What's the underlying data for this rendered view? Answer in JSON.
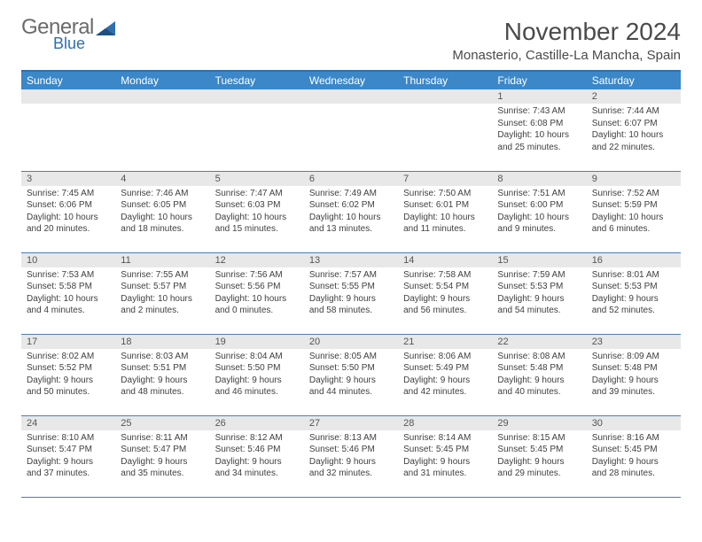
{
  "brand": {
    "general": "General",
    "blue": "Blue"
  },
  "title": "November 2024",
  "location": "Monasterio, Castille-La Mancha, Spain",
  "colors": {
    "header_bg": "#3b87c8",
    "header_border": "#2f6fb0",
    "row_border": "#4a7fb5",
    "daynum_bg": "#e8e8e8",
    "text": "#404040"
  },
  "weekdays": [
    "Sunday",
    "Monday",
    "Tuesday",
    "Wednesday",
    "Thursday",
    "Friday",
    "Saturday"
  ],
  "weeks": [
    [
      {
        "empty": true
      },
      {
        "empty": true
      },
      {
        "empty": true
      },
      {
        "empty": true
      },
      {
        "empty": true
      },
      {
        "day": "1",
        "sunrise": "Sunrise: 7:43 AM",
        "sunset": "Sunset: 6:08 PM",
        "daylight1": "Daylight: 10 hours",
        "daylight2": "and 25 minutes."
      },
      {
        "day": "2",
        "sunrise": "Sunrise: 7:44 AM",
        "sunset": "Sunset: 6:07 PM",
        "daylight1": "Daylight: 10 hours",
        "daylight2": "and 22 minutes."
      }
    ],
    [
      {
        "day": "3",
        "sunrise": "Sunrise: 7:45 AM",
        "sunset": "Sunset: 6:06 PM",
        "daylight1": "Daylight: 10 hours",
        "daylight2": "and 20 minutes."
      },
      {
        "day": "4",
        "sunrise": "Sunrise: 7:46 AM",
        "sunset": "Sunset: 6:05 PM",
        "daylight1": "Daylight: 10 hours",
        "daylight2": "and 18 minutes."
      },
      {
        "day": "5",
        "sunrise": "Sunrise: 7:47 AM",
        "sunset": "Sunset: 6:03 PM",
        "daylight1": "Daylight: 10 hours",
        "daylight2": "and 15 minutes."
      },
      {
        "day": "6",
        "sunrise": "Sunrise: 7:49 AM",
        "sunset": "Sunset: 6:02 PM",
        "daylight1": "Daylight: 10 hours",
        "daylight2": "and 13 minutes."
      },
      {
        "day": "7",
        "sunrise": "Sunrise: 7:50 AM",
        "sunset": "Sunset: 6:01 PM",
        "daylight1": "Daylight: 10 hours",
        "daylight2": "and 11 minutes."
      },
      {
        "day": "8",
        "sunrise": "Sunrise: 7:51 AM",
        "sunset": "Sunset: 6:00 PM",
        "daylight1": "Daylight: 10 hours",
        "daylight2": "and 9 minutes."
      },
      {
        "day": "9",
        "sunrise": "Sunrise: 7:52 AM",
        "sunset": "Sunset: 5:59 PM",
        "daylight1": "Daylight: 10 hours",
        "daylight2": "and 6 minutes."
      }
    ],
    [
      {
        "day": "10",
        "sunrise": "Sunrise: 7:53 AM",
        "sunset": "Sunset: 5:58 PM",
        "daylight1": "Daylight: 10 hours",
        "daylight2": "and 4 minutes."
      },
      {
        "day": "11",
        "sunrise": "Sunrise: 7:55 AM",
        "sunset": "Sunset: 5:57 PM",
        "daylight1": "Daylight: 10 hours",
        "daylight2": "and 2 minutes."
      },
      {
        "day": "12",
        "sunrise": "Sunrise: 7:56 AM",
        "sunset": "Sunset: 5:56 PM",
        "daylight1": "Daylight: 10 hours",
        "daylight2": "and 0 minutes."
      },
      {
        "day": "13",
        "sunrise": "Sunrise: 7:57 AM",
        "sunset": "Sunset: 5:55 PM",
        "daylight1": "Daylight: 9 hours",
        "daylight2": "and 58 minutes."
      },
      {
        "day": "14",
        "sunrise": "Sunrise: 7:58 AM",
        "sunset": "Sunset: 5:54 PM",
        "daylight1": "Daylight: 9 hours",
        "daylight2": "and 56 minutes."
      },
      {
        "day": "15",
        "sunrise": "Sunrise: 7:59 AM",
        "sunset": "Sunset: 5:53 PM",
        "daylight1": "Daylight: 9 hours",
        "daylight2": "and 54 minutes."
      },
      {
        "day": "16",
        "sunrise": "Sunrise: 8:01 AM",
        "sunset": "Sunset: 5:53 PM",
        "daylight1": "Daylight: 9 hours",
        "daylight2": "and 52 minutes."
      }
    ],
    [
      {
        "day": "17",
        "sunrise": "Sunrise: 8:02 AM",
        "sunset": "Sunset: 5:52 PM",
        "daylight1": "Daylight: 9 hours",
        "daylight2": "and 50 minutes."
      },
      {
        "day": "18",
        "sunrise": "Sunrise: 8:03 AM",
        "sunset": "Sunset: 5:51 PM",
        "daylight1": "Daylight: 9 hours",
        "daylight2": "and 48 minutes."
      },
      {
        "day": "19",
        "sunrise": "Sunrise: 8:04 AM",
        "sunset": "Sunset: 5:50 PM",
        "daylight1": "Daylight: 9 hours",
        "daylight2": "and 46 minutes."
      },
      {
        "day": "20",
        "sunrise": "Sunrise: 8:05 AM",
        "sunset": "Sunset: 5:50 PM",
        "daylight1": "Daylight: 9 hours",
        "daylight2": "and 44 minutes."
      },
      {
        "day": "21",
        "sunrise": "Sunrise: 8:06 AM",
        "sunset": "Sunset: 5:49 PM",
        "daylight1": "Daylight: 9 hours",
        "daylight2": "and 42 minutes."
      },
      {
        "day": "22",
        "sunrise": "Sunrise: 8:08 AM",
        "sunset": "Sunset: 5:48 PM",
        "daylight1": "Daylight: 9 hours",
        "daylight2": "and 40 minutes."
      },
      {
        "day": "23",
        "sunrise": "Sunrise: 8:09 AM",
        "sunset": "Sunset: 5:48 PM",
        "daylight1": "Daylight: 9 hours",
        "daylight2": "and 39 minutes."
      }
    ],
    [
      {
        "day": "24",
        "sunrise": "Sunrise: 8:10 AM",
        "sunset": "Sunset: 5:47 PM",
        "daylight1": "Daylight: 9 hours",
        "daylight2": "and 37 minutes."
      },
      {
        "day": "25",
        "sunrise": "Sunrise: 8:11 AM",
        "sunset": "Sunset: 5:47 PM",
        "daylight1": "Daylight: 9 hours",
        "daylight2": "and 35 minutes."
      },
      {
        "day": "26",
        "sunrise": "Sunrise: 8:12 AM",
        "sunset": "Sunset: 5:46 PM",
        "daylight1": "Daylight: 9 hours",
        "daylight2": "and 34 minutes."
      },
      {
        "day": "27",
        "sunrise": "Sunrise: 8:13 AM",
        "sunset": "Sunset: 5:46 PM",
        "daylight1": "Daylight: 9 hours",
        "daylight2": "and 32 minutes."
      },
      {
        "day": "28",
        "sunrise": "Sunrise: 8:14 AM",
        "sunset": "Sunset: 5:45 PM",
        "daylight1": "Daylight: 9 hours",
        "daylight2": "and 31 minutes."
      },
      {
        "day": "29",
        "sunrise": "Sunrise: 8:15 AM",
        "sunset": "Sunset: 5:45 PM",
        "daylight1": "Daylight: 9 hours",
        "daylight2": "and 29 minutes."
      },
      {
        "day": "30",
        "sunrise": "Sunrise: 8:16 AM",
        "sunset": "Sunset: 5:45 PM",
        "daylight1": "Daylight: 9 hours",
        "daylight2": "and 28 minutes."
      }
    ]
  ]
}
